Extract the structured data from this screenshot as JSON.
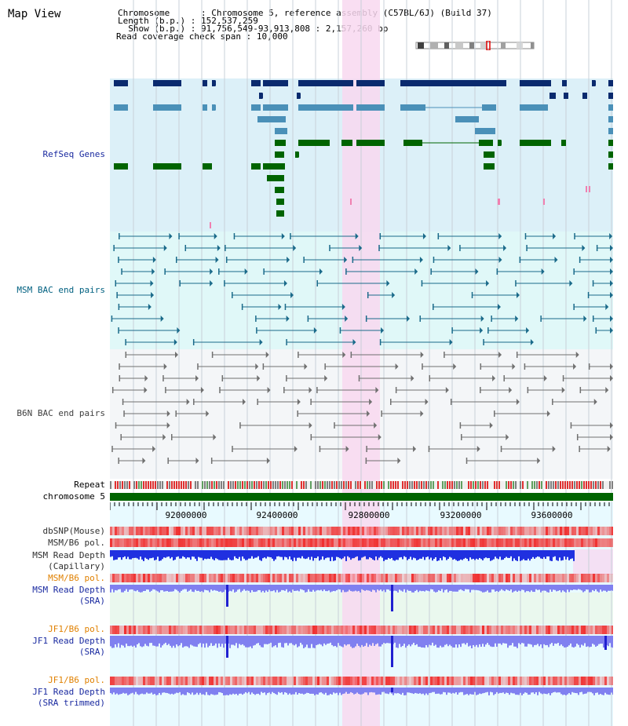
{
  "page_title": "Map View",
  "info": {
    "chromosome_label": "Chromosome",
    "chromosome_value": "Chromosome 5, reference assembly (C57BL/6J) (Build 37)",
    "length_label": "Length (b.p.)",
    "length_value": "152,537,259",
    "show_label": "Show (b.p.)",
    "show_value": "91,756,549-93,913,808 : 2,157,260 bp",
    "coverage_label": "Read coverage check span",
    "coverage_value": "10,000"
  },
  "lanes": {
    "refseq": "RefSeq Genes",
    "msm_bac": "MSM BAC end pairs",
    "b6n_bac": "B6N BAC end pairs",
    "repeat": "Repeat",
    "chromosome": "chromosome 5",
    "dbsnp": "dbSNP(Mouse)",
    "msm_b6_pol": "MSM/B6 pol.",
    "msm_depth_cap_1": "MSM Read Depth",
    "msm_depth_cap_2": "(Capillary)",
    "msm_b6_pol_2": "MSM/B6 pol.",
    "msm_depth_sra_1": "MSM Read Depth",
    "msm_depth_sra_2": "(SRA)",
    "jf1_b6_pol": "JF1/B6 pol.",
    "jf1_depth_sra_1": "JF1 Read Depth",
    "jf1_depth_sra_2": "(SRA)",
    "jf1_b6_pol_2": "JF1/B6 pol.",
    "jf1_depth_trim_1": "JF1 Read Depth",
    "jf1_depth_trim_2": "(SRA trimmed)"
  },
  "axis_ticks": [
    "92000000",
    "92400000",
    "92800000",
    "93200000",
    "93600000"
  ],
  "colors": {
    "refseq_bg": "#dcf0f8",
    "bac_msm_bg": "#e0f8f8",
    "bac_b6n_bg": "#f4f6f8",
    "highlight": "#f8d8f0",
    "gene_dark": "#0a2a6e",
    "gene_mid": "#4a90b8",
    "gene_green": "#006400",
    "chromosome_bar": "#006400",
    "label_blue": "#1a2aa0",
    "label_teal": "#006080",
    "label_orange": "#e08000",
    "label_dark": "#000080",
    "depth_blue": "#2030e0",
    "depth_light": "#8080f0",
    "pol_red": "#f03030"
  }
}
